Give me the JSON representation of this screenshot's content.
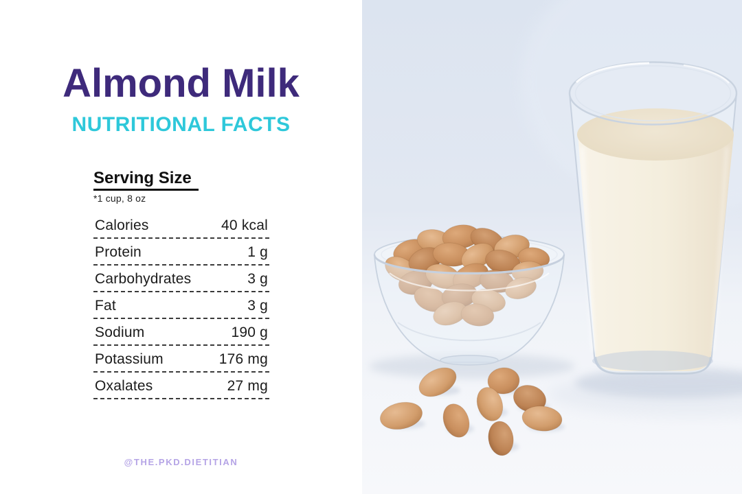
{
  "header": {
    "title": "Almond Milk",
    "subtitle": "NUTRITIONAL FACTS"
  },
  "serving": {
    "heading": "Serving Size",
    "note": "*1 cup, 8 oz"
  },
  "nutrition": {
    "rows": [
      {
        "label": "Calories",
        "value": "40 kcal"
      },
      {
        "label": "Protein",
        "value": "1 g"
      },
      {
        "label": "Carbohydrates",
        "value": "3 g"
      },
      {
        "label": "Fat",
        "value": "3 g"
      },
      {
        "label": "Sodium",
        "value": "190 g"
      },
      {
        "label": "Potassium",
        "value": "176 mg"
      },
      {
        "label": "Oxalates",
        "value": "27 mg"
      }
    ]
  },
  "footer": {
    "handle": "@THE.PKD.DIETITIAN"
  },
  "photo": {
    "description": "Glass of almond milk beside a glass bowl of almonds with loose almonds scattered on a light surface"
  },
  "colors": {
    "title_purple": "#3e2a7b",
    "subtitle_cyan": "#2ec8da",
    "text_dark": "#1b1b1b",
    "handle_lavender": "#b5a4e6",
    "photo_background_top": "#dce4f0",
    "photo_background_bottom": "#f7f8fb",
    "milk_cream": "#f4eedd",
    "milk_surface": "#e9dec8",
    "almond_tan": "#c98f5e",
    "glass_stroke": "#c7d1df"
  }
}
